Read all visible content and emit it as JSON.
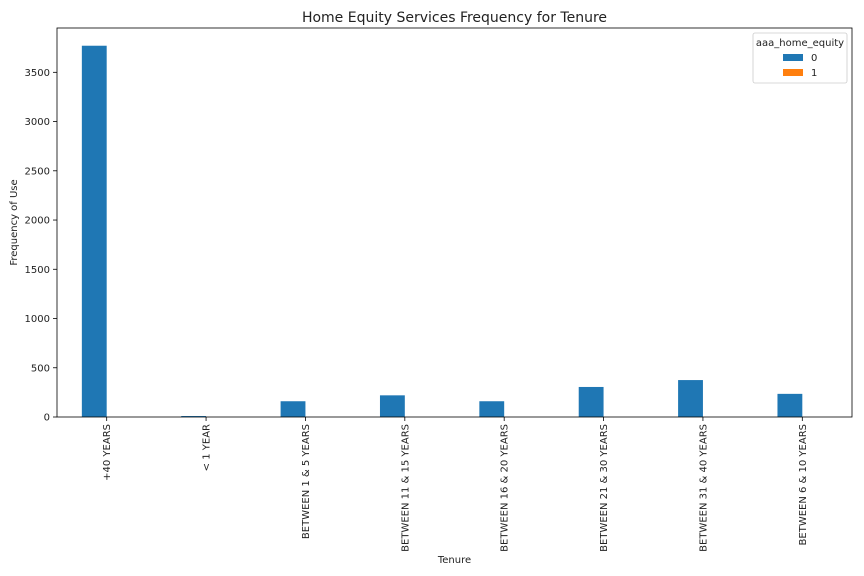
{
  "chart_data": {
    "type": "bar",
    "title": "Home Equity Services Frequency for Tenure",
    "xlabel": "Tenure",
    "ylabel": "Frequency of Use",
    "categories": [
      "+40 YEARS",
      "< 1 YEAR",
      "BETWEEN 1 & 5 YEARS",
      "BETWEEN 11 & 15 YEARS",
      "BETWEEN 16 & 20 YEARS",
      "BETWEEN 21 & 30 YEARS",
      "BETWEEN 31 & 40 YEARS",
      "BETWEEN 6 & 10 YEARS"
    ],
    "series": [
      {
        "name": "0",
        "color": "#1f77b4",
        "values": [
          3770,
          10,
          160,
          220,
          160,
          305,
          375,
          235
        ]
      },
      {
        "name": "1",
        "color": "#ff7f0e",
        "values": [
          0,
          0,
          0,
          0,
          0,
          0,
          0,
          0
        ]
      }
    ],
    "ylim": [
      0,
      3950
    ],
    "yticks": [
      0,
      500,
      1000,
      1500,
      2000,
      2500,
      3000,
      3500
    ],
    "legend": {
      "title": "aaa_home_equity",
      "placement": "top-right"
    },
    "grid": false
  }
}
